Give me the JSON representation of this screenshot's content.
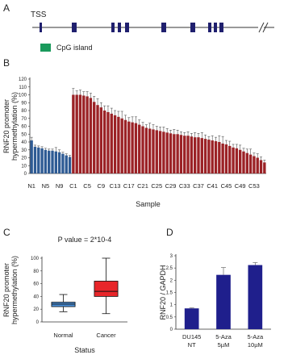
{
  "diagram": {
    "label": "A",
    "tss": "TSS",
    "legend": "CpG island"
  },
  "chart_data": [
    {
      "type": "bar",
      "label": "B",
      "ylabel": [
        "RNF20 promoter",
        "hypermethylation (%)"
      ],
      "xlabel": "Sample",
      "categories": [
        "N1",
        null,
        null,
        null,
        "N5",
        null,
        null,
        null,
        "N9",
        null,
        null,
        null,
        "C1",
        null,
        null,
        null,
        "C5",
        null,
        null,
        null,
        "C9",
        null,
        null,
        null,
        "C13",
        null,
        null,
        null,
        "C17",
        null,
        null,
        null,
        "C21",
        null,
        null,
        null,
        "C25",
        null,
        null,
        null,
        "C29",
        null,
        null,
        null,
        "C33",
        null,
        null,
        null,
        "C37",
        null,
        null,
        null,
        "C41",
        null,
        null,
        null,
        "C45",
        null,
        null,
        null,
        "C49",
        null,
        null,
        null,
        "C53",
        null,
        null,
        null
      ],
      "values": [
        42,
        34,
        33,
        32,
        30,
        29,
        29,
        28,
        27,
        25,
        23,
        21,
        100,
        100,
        100,
        99,
        98,
        96,
        91,
        87,
        84,
        80,
        78,
        76,
        74,
        72,
        70,
        68,
        66,
        65,
        64,
        62,
        60,
        58,
        57,
        56,
        55,
        54,
        53,
        52,
        51,
        50,
        50,
        49,
        48,
        48,
        47,
        46,
        46,
        45,
        44,
        43,
        42,
        41,
        40,
        38,
        37,
        35,
        33,
        32,
        30,
        28,
        26,
        24,
        22,
        20,
        17,
        14
      ],
      "errors": [
        4,
        2,
        2,
        2,
        2,
        2,
        2,
        5,
        3,
        2,
        2,
        2,
        8,
        5,
        6,
        5,
        6,
        6,
        7,
        8,
        6,
        6,
        8,
        7,
        6,
        7,
        9,
        6,
        5,
        7,
        8,
        6,
        5,
        4,
        7,
        6,
        5,
        5,
        6,
        5,
        4,
        6,
        5,
        4,
        4,
        5,
        4,
        6,
        5,
        7,
        5,
        4,
        6,
        5,
        8,
        9,
        5,
        6,
        4,
        5,
        6,
        4,
        5,
        7,
        4,
        5,
        4,
        3
      ],
      "colors": [
        "#2e5b94",
        "#2e5b94",
        "#2e5b94",
        "#2e5b94",
        "#2e5b94",
        "#2e5b94",
        "#2e5b94",
        "#2e5b94",
        "#2e5b94",
        "#2e5b94",
        "#2e5b94",
        "#2e5b94",
        "#9b2226",
        "#9b2226",
        "#9b2226",
        "#9b2226",
        "#9b2226",
        "#9b2226",
        "#9b2226",
        "#9b2226",
        "#9b2226",
        "#9b2226",
        "#9b2226",
        "#9b2226",
        "#9b2226",
        "#9b2226",
        "#9b2226",
        "#9b2226",
        "#9b2226",
        "#9b2226",
        "#9b2226",
        "#9b2226",
        "#9b2226",
        "#9b2226",
        "#9b2226",
        "#9b2226",
        "#9b2226",
        "#9b2226",
        "#9b2226",
        "#9b2226",
        "#9b2226",
        "#9b2226",
        "#9b2226",
        "#9b2226",
        "#9b2226",
        "#9b2226",
        "#9b2226",
        "#9b2226",
        "#9b2226",
        "#9b2226",
        "#9b2226",
        "#9b2226",
        "#9b2226",
        "#9b2226",
        "#9b2226",
        "#9b2226",
        "#9b2226",
        "#9b2226",
        "#9b2226",
        "#9b2226",
        "#9b2226",
        "#9b2226",
        "#9b2226",
        "#9b2226",
        "#9b2226",
        "#9b2226",
        "#9b2226",
        "#9b2226"
      ],
      "ylim": [
        0,
        120
      ],
      "yticks": [
        0,
        10,
        20,
        30,
        40,
        50,
        60,
        70,
        80,
        90,
        100,
        110,
        120
      ]
    },
    {
      "type": "box",
      "label": "C",
      "title": "P value = 2*10-4",
      "ylabel": [
        "RNF20 promoter",
        "hypermethylation (%)"
      ],
      "xlabel": "Status",
      "categories": [
        "Normal",
        "Cancer"
      ],
      "stats": [
        {
          "min": 16,
          "q1": 24,
          "median": 28,
          "q3": 31,
          "max": 43
        },
        {
          "min": 13,
          "q1": 40,
          "median": 48,
          "q3": 64,
          "max": 100
        }
      ],
      "colors": [
        "#4a8fd8",
        "#e8262a"
      ],
      "ylim": [
        0,
        100
      ],
      "yticks": [
        0,
        20,
        40,
        60,
        80,
        100
      ]
    },
    {
      "type": "bar",
      "label": "D",
      "ylabel": [
        "RNF20 / GAPDH"
      ],
      "categories": [
        [
          "DU145",
          "NT"
        ],
        [
          "5-Aza",
          "5µM"
        ],
        [
          "5-Aza",
          "10µM"
        ]
      ],
      "values": [
        0.85,
        2.22,
        2.62
      ],
      "errors": [
        0.02,
        0.3,
        0.1
      ],
      "color": "#1f1f8c",
      "ylim": [
        0,
        3
      ],
      "yticks": [
        0,
        0.5,
        1,
        1.5,
        2,
        2.5,
        3
      ]
    }
  ]
}
